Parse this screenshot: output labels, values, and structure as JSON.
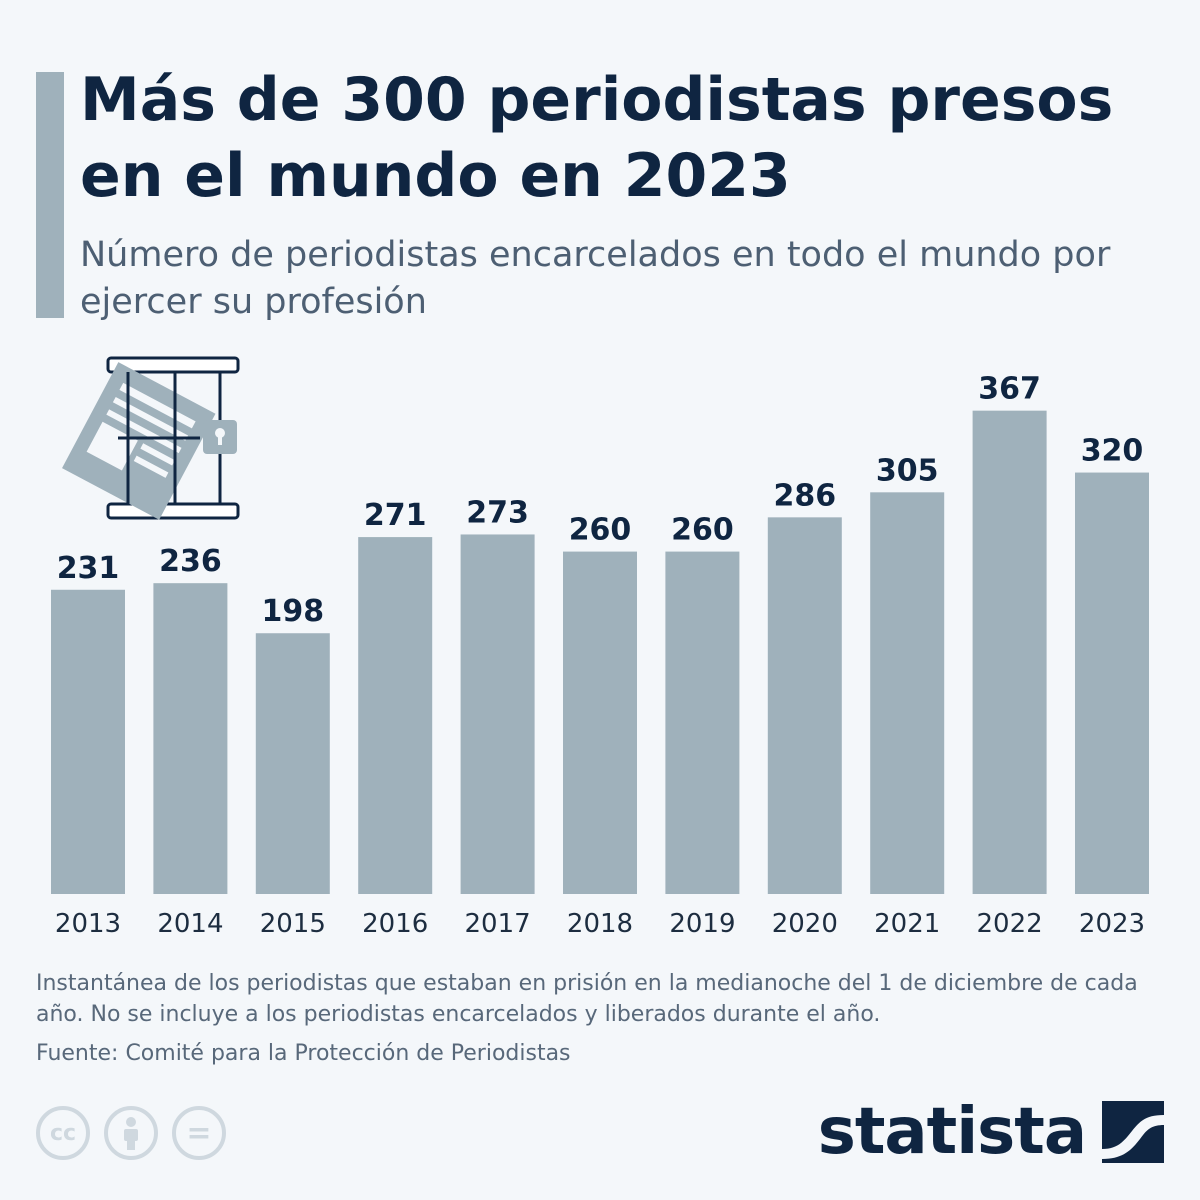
{
  "header": {
    "title": "Más de 300 periodistas presos en el mundo en 2023",
    "subtitle": "Número de periodistas encarcelados en todo el mundo por ejercer su profesión"
  },
  "chart_data": {
    "type": "bar",
    "categories": [
      "2013",
      "2014",
      "2015",
      "2016",
      "2017",
      "2018",
      "2019",
      "2020",
      "2021",
      "2022",
      "2023"
    ],
    "values": [
      231,
      236,
      198,
      271,
      273,
      260,
      260,
      286,
      305,
      367,
      320
    ],
    "title": "Más de 300 periodistas presos en el mundo en 2023",
    "subtitle": "Número de periodistas encarcelados en todo el mundo por ejercer su profesión",
    "ylim": [
      0,
      400
    ],
    "grid": false,
    "bar_color": "#9fb1bb",
    "label_color": "#0f2541"
  },
  "footer": {
    "note": "Instantánea de los periodistas que estaban en prisión en la medianoche del 1 de diciembre de cada año. No se incluye a los periodistas encarcelados y liberados durante el año.",
    "source": "Fuente: Comité para la Protección de Periodistas",
    "license_icons": [
      "cc-icon",
      "attribution-icon",
      "no-derivatives-icon"
    ],
    "cc_glyph": "cc",
    "nd_glyph": "=",
    "brand": "statista"
  }
}
